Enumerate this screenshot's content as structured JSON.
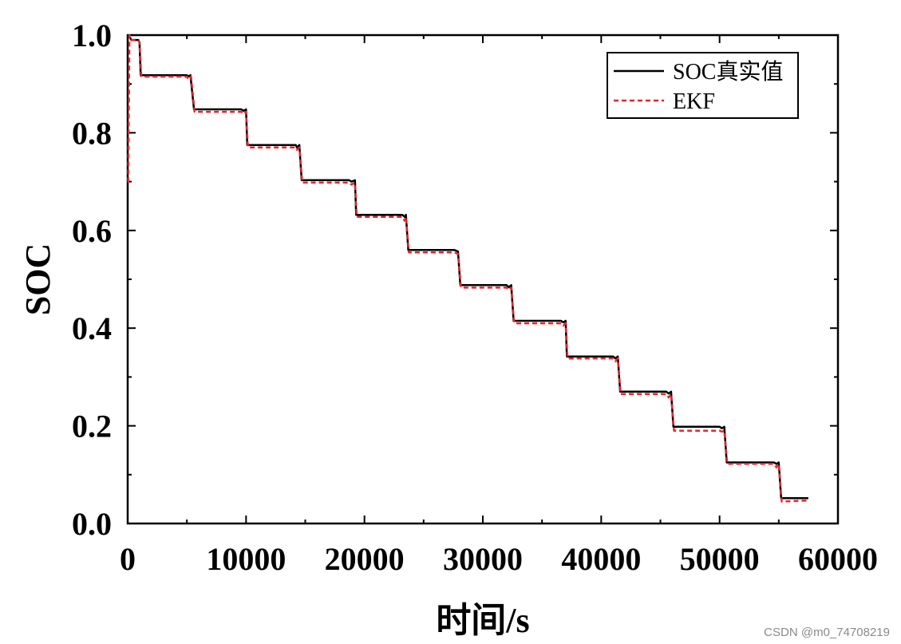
{
  "chart_data": {
    "type": "line",
    "title": "",
    "xlabel": "时间/s",
    "ylabel": "SOC",
    "xlim": [
      0,
      60000
    ],
    "ylim": [
      0.0,
      1.0
    ],
    "x_ticks": [
      "0",
      "10000",
      "20000",
      "30000",
      "40000",
      "50000",
      "60000"
    ],
    "x_tick_values": [
      0,
      10000,
      20000,
      30000,
      40000,
      50000,
      60000
    ],
    "y_ticks": [
      "0.0",
      "0.2",
      "0.4",
      "0.6",
      "0.8",
      "1.0"
    ],
    "y_tick_values": [
      0.0,
      0.2,
      0.4,
      0.6,
      0.8,
      1.0
    ],
    "grid": false,
    "legend_position": "top-right",
    "series": [
      {
        "name": "SOC真实值",
        "color": "#000000",
        "style": "solid",
        "x": [
          0,
          200,
          300,
          900,
          1000,
          1100,
          5000,
          5100,
          5300,
          5600,
          9600,
          9800,
          10000,
          10100,
          14200,
          14300,
          14500,
          14700,
          18700,
          18900,
          19200,
          19300,
          23200,
          23400,
          23500,
          23700,
          27600,
          27900,
          28100,
          32000,
          32200,
          32400,
          32600,
          36600,
          36800,
          37000,
          37100,
          41000,
          41200,
          41400,
          41600,
          45500,
          45700,
          45900,
          46100,
          50000,
          50200,
          50400,
          50600,
          54600,
          54800,
          55000,
          55200,
          57500
        ],
        "y": [
          1.0,
          0.995,
          0.99,
          0.99,
          0.985,
          0.918,
          0.918,
          0.915,
          0.918,
          0.848,
          0.848,
          0.845,
          0.848,
          0.775,
          0.775,
          0.77,
          0.775,
          0.703,
          0.703,
          0.7,
          0.703,
          0.632,
          0.632,
          0.628,
          0.632,
          0.56,
          0.56,
          0.557,
          0.488,
          0.488,
          0.484,
          0.488,
          0.415,
          0.415,
          0.412,
          0.415,
          0.342,
          0.342,
          0.338,
          0.342,
          0.27,
          0.27,
          0.266,
          0.27,
          0.198,
          0.198,
          0.195,
          0.198,
          0.125,
          0.125,
          0.122,
          0.125,
          0.052,
          0.052
        ]
      },
      {
        "name": "EKF",
        "color": "#e8242a",
        "style": "dashed",
        "x": [
          0,
          50,
          150,
          300,
          900,
          1000,
          1150,
          5000,
          5100,
          5350,
          5650,
          9600,
          9800,
          10000,
          10150,
          14200,
          14300,
          14500,
          14750,
          18700,
          18900,
          19200,
          19350,
          23200,
          23400,
          23500,
          23750,
          27600,
          27900,
          28150,
          32000,
          32200,
          32400,
          32650,
          36600,
          36800,
          37000,
          37150,
          41000,
          41200,
          41400,
          41650,
          45500,
          45700,
          45900,
          46150,
          50000,
          50200,
          50400,
          50650,
          54600,
          54800,
          55000,
          55250,
          57500
        ],
        "y": [
          0.7,
          0.7,
          1.0,
          0.99,
          0.99,
          0.985,
          0.915,
          0.915,
          0.91,
          0.915,
          0.843,
          0.843,
          0.838,
          0.843,
          0.77,
          0.77,
          0.765,
          0.77,
          0.698,
          0.698,
          0.694,
          0.698,
          0.628,
          0.628,
          0.62,
          0.628,
          0.555,
          0.555,
          0.552,
          0.483,
          0.483,
          0.478,
          0.483,
          0.41,
          0.41,
          0.405,
          0.41,
          0.338,
          0.338,
          0.332,
          0.338,
          0.265,
          0.265,
          0.258,
          0.265,
          0.19,
          0.19,
          0.188,
          0.19,
          0.122,
          0.122,
          0.115,
          0.122,
          0.045,
          0.047
        ]
      }
    ]
  },
  "watermark": "CSDN @m0_74708219"
}
